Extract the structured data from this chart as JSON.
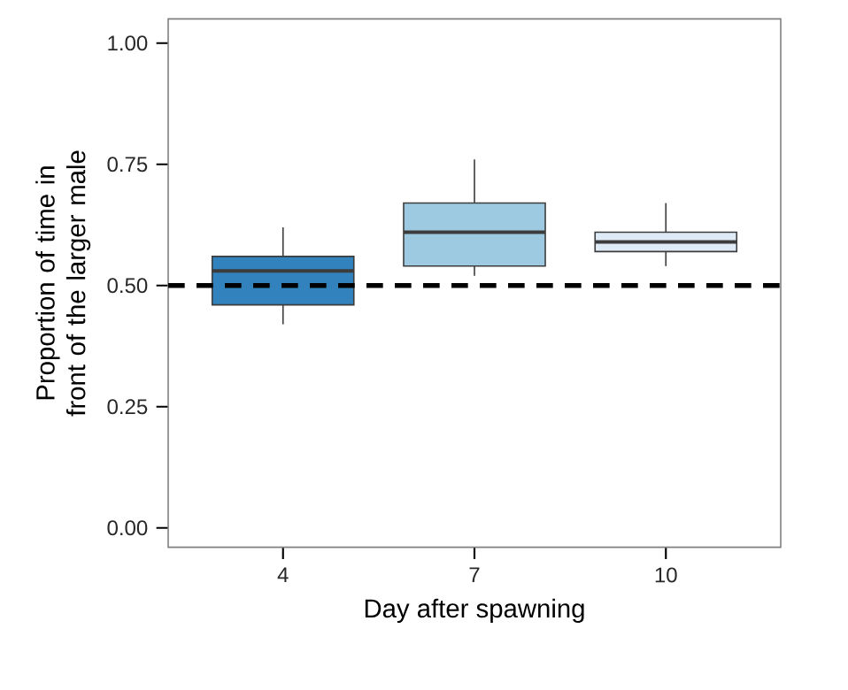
{
  "chart_data": {
    "type": "box",
    "xlabel": "Day after spawning",
    "ylabel": "Proportion of time in front of the larger male",
    "categories": [
      "4",
      "7",
      "10"
    ],
    "boxes": [
      {
        "low": 0.42,
        "q1": 0.46,
        "median": 0.53,
        "q3": 0.56,
        "high": 0.62
      },
      {
        "low": 0.52,
        "q1": 0.54,
        "median": 0.61,
        "q3": 0.67,
        "high": 0.76
      },
      {
        "low": 0.54,
        "q1": 0.57,
        "median": 0.59,
        "q3": 0.61,
        "high": 0.67
      }
    ],
    "colors": [
      "#3182bd",
      "#9ecae1",
      "#deebf7"
    ],
    "ylim": [
      -0.04,
      1.05
    ],
    "yticks": [
      {
        "value": 0,
        "label": "0.00"
      },
      {
        "value": 0.25,
        "label": "0.25"
      },
      {
        "value": 0.5,
        "label": "0.50"
      },
      {
        "value": 0.75,
        "label": "0.75"
      },
      {
        "value": 1,
        "label": "1.00"
      }
    ],
    "ref_lines": [
      {
        "axis": "y",
        "value": 0.5,
        "color": "#000000",
        "line_style": "dashed"
      }
    ],
    "grid": false
  }
}
